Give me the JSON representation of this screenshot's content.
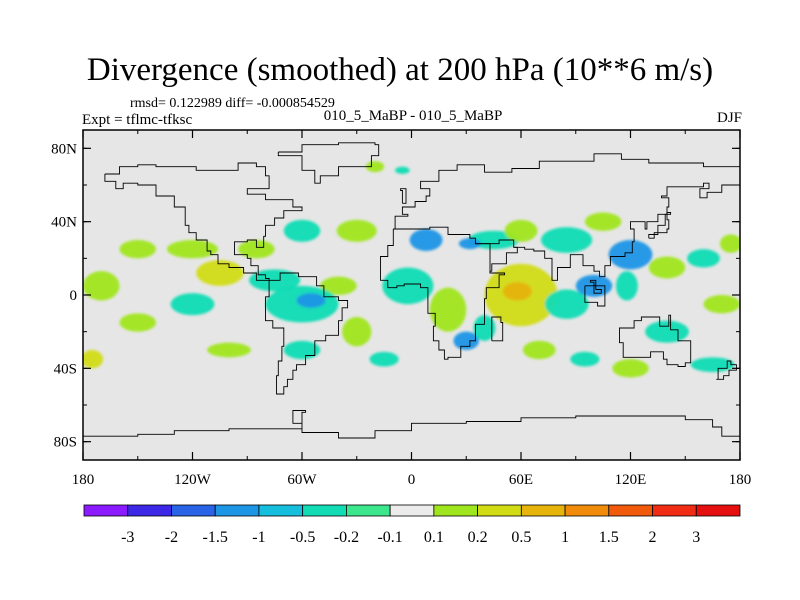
{
  "header": {
    "title": "Divergence (smoothed) at 200 hPa (10**6 m/s)",
    "stats": "rmsd= 0.122989 diff= -0.000854529",
    "experiment": "Expt = tflmc-tfksc",
    "subtitle": "010_5_MaBP - 010_5_MaBP",
    "season": "DJF"
  },
  "chart_data": {
    "type": "heatmap",
    "title": "Divergence (smoothed) at 200 hPa (10**6 m/s)",
    "projection": "cylindrical equidistant",
    "xlim": [
      -180,
      180
    ],
    "ylim": [
      -90,
      90
    ],
    "x_ticks": [
      {
        "value": -180,
        "label": "180"
      },
      {
        "value": -120,
        "label": "120W"
      },
      {
        "value": -60,
        "label": "60W"
      },
      {
        "value": 0,
        "label": "0"
      },
      {
        "value": 60,
        "label": "60E"
      },
      {
        "value": 120,
        "label": "120E"
      },
      {
        "value": 180,
        "label": "180"
      }
    ],
    "y_ticks": [
      {
        "value": 80,
        "label": "80N"
      },
      {
        "value": 40,
        "label": "40N"
      },
      {
        "value": 0,
        "label": "0"
      },
      {
        "value": -40,
        "label": "40S"
      },
      {
        "value": -80,
        "label": "80S"
      }
    ],
    "background_color": "#e6e6e6",
    "levels": [
      "-3",
      "-2",
      "-1.5",
      "-1",
      "-0.5",
      "-0.2",
      "-0.1",
      "0.1",
      "0.2",
      "0.5",
      "1",
      "1.5",
      "2",
      "3"
    ],
    "colors": [
      "#8c1aff",
      "#3c28e6",
      "#2a64e6",
      "#1e96e6",
      "#14bedc",
      "#12dcb4",
      "#3ce68c",
      "#ececec",
      "#a0e61e",
      "#d2dc14",
      "#e6b40a",
      "#f08c0a",
      "#f05a0a",
      "#f02d14",
      "#e60f0f"
    ],
    "regions": [
      {
        "lon": 8,
        "lat": 30,
        "rlon": 9,
        "rlat": 6,
        "color": "#1e96e6"
      },
      {
        "lon": 45,
        "lat": 30,
        "rlon": 14,
        "rlat": 5,
        "color": "#12dcb4"
      },
      {
        "lon": 32,
        "lat": 28,
        "rlon": 6,
        "rlat": 3,
        "color": "#1e96e6"
      },
      {
        "lon": 60,
        "lat": 35,
        "rlon": 9,
        "rlat": 6,
        "color": "#a0e61e"
      },
      {
        "lon": 85,
        "lat": 30,
        "rlon": 14,
        "rlat": 7,
        "color": "#12dcb4"
      },
      {
        "lon": 105,
        "lat": 40,
        "rlon": 10,
        "rlat": 5,
        "color": "#a0e61e"
      },
      {
        "lon": 120,
        "lat": 22,
        "rlon": 12,
        "rlat": 8,
        "color": "#1e96e6"
      },
      {
        "lon": 140,
        "lat": 15,
        "rlon": 10,
        "rlat": 6,
        "color": "#a0e61e"
      },
      {
        "lon": 160,
        "lat": 20,
        "rlon": 9,
        "rlat": 5,
        "color": "#12dcb4"
      },
      {
        "lon": 175,
        "lat": 28,
        "rlon": 6,
        "rlat": 5,
        "color": "#a0e61e"
      },
      {
        "lon": -2,
        "lat": 5,
        "rlon": 14,
        "rlat": 10,
        "color": "#12dcb4"
      },
      {
        "lon": 60,
        "lat": 0,
        "rlon": 20,
        "rlat": 17,
        "color": "#d2dc14"
      },
      {
        "lon": 58,
        "lat": 2,
        "rlon": 8,
        "rlat": 5,
        "color": "#e6b40a"
      },
      {
        "lon": 20,
        "lat": -8,
        "rlon": 10,
        "rlat": 12,
        "color": "#a0e61e"
      },
      {
        "lon": 30,
        "lat": -25,
        "rlon": 7,
        "rlat": 5,
        "color": "#1e96e6"
      },
      {
        "lon": 40,
        "lat": -18,
        "rlon": 6,
        "rlat": 7,
        "color": "#12dcb4"
      },
      {
        "lon": 85,
        "lat": -5,
        "rlon": 12,
        "rlat": 8,
        "color": "#12dcb4"
      },
      {
        "lon": 100,
        "lat": 5,
        "rlon": 10,
        "rlat": 6,
        "color": "#1e96e6"
      },
      {
        "lon": 118,
        "lat": 5,
        "rlon": 6,
        "rlat": 8,
        "color": "#12dcb4"
      },
      {
        "lon": 140,
        "lat": -20,
        "rlon": 12,
        "rlat": 6,
        "color": "#12dcb4"
      },
      {
        "lon": 170,
        "lat": -5,
        "rlon": 10,
        "rlat": 5,
        "color": "#a0e61e"
      },
      {
        "lon": 120,
        "lat": -40,
        "rlon": 10,
        "rlat": 5,
        "color": "#a0e61e"
      },
      {
        "lon": 165,
        "lat": -38,
        "rlon": 12,
        "rlat": 4,
        "color": "#12dcb4"
      },
      {
        "lon": 95,
        "lat": -35,
        "rlon": 8,
        "rlat": 4,
        "color": "#12dcb4"
      },
      {
        "lon": 70,
        "lat": -30,
        "rlon": 9,
        "rlat": 5,
        "color": "#a0e61e"
      },
      {
        "lon": -30,
        "lat": 35,
        "rlon": 11,
        "rlat": 6,
        "color": "#a0e61e"
      },
      {
        "lon": -60,
        "lat": 35,
        "rlon": 10,
        "rlat": 6,
        "color": "#12dcb4"
      },
      {
        "lon": -85,
        "lat": 25,
        "rlon": 10,
        "rlat": 5,
        "color": "#a0e61e"
      },
      {
        "lon": -120,
        "lat": 25,
        "rlon": 14,
        "rlat": 5,
        "color": "#a0e61e"
      },
      {
        "lon": -150,
        "lat": 25,
        "rlon": 10,
        "rlat": 5,
        "color": "#a0e61e"
      },
      {
        "lon": -170,
        "lat": 5,
        "rlon": 10,
        "rlat": 8,
        "color": "#a0e61e"
      },
      {
        "lon": -105,
        "lat": 12,
        "rlon": 13,
        "rlat": 7,
        "color": "#d2dc14"
      },
      {
        "lon": -75,
        "lat": 8,
        "rlon": 14,
        "rlat": 6,
        "color": "#12dcb4"
      },
      {
        "lon": -40,
        "lat": 5,
        "rlon": 10,
        "rlat": 5,
        "color": "#a0e61e"
      },
      {
        "lon": -60,
        "lat": -5,
        "rlon": 20,
        "rlat": 10,
        "color": "#12dcb4"
      },
      {
        "lon": -55,
        "lat": -3,
        "rlon": 8,
        "rlat": 4,
        "color": "#1e96e6"
      },
      {
        "lon": -120,
        "lat": -5,
        "rlon": 12,
        "rlat": 6,
        "color": "#12dcb4"
      },
      {
        "lon": -150,
        "lat": -15,
        "rlon": 10,
        "rlat": 5,
        "color": "#a0e61e"
      },
      {
        "lon": -30,
        "lat": -20,
        "rlon": 8,
        "rlat": 8,
        "color": "#a0e61e"
      },
      {
        "lon": -100,
        "lat": -30,
        "rlon": 12,
        "rlat": 4,
        "color": "#a0e61e"
      },
      {
        "lon": -60,
        "lat": -30,
        "rlon": 10,
        "rlat": 5,
        "color": "#12dcb4"
      },
      {
        "lon": -15,
        "lat": -35,
        "rlon": 8,
        "rlat": 4,
        "color": "#12dcb4"
      },
      {
        "lon": -175,
        "lat": -35,
        "rlon": 6,
        "rlat": 5,
        "color": "#d2dc14"
      },
      {
        "lon": -20,
        "lat": 70,
        "rlon": 5,
        "rlat": 3,
        "color": "#a0e61e"
      },
      {
        "lon": -5,
        "lat": 68,
        "rlon": 4,
        "rlat": 2,
        "color": "#12dcb4"
      }
    ],
    "coastlines": [
      [
        [
          -168,
          66
        ],
        [
          -160,
          70
        ],
        [
          -150,
          71
        ],
        [
          -140,
          70
        ],
        [
          -128,
          70
        ],
        [
          -118,
          68
        ],
        [
          -105,
          68
        ],
        [
          -95,
          72
        ],
        [
          -85,
          70
        ],
        [
          -80,
          65
        ],
        [
          -78,
          58
        ],
        [
          -90,
          55
        ],
        [
          -80,
          52
        ],
        [
          -65,
          48
        ],
        [
          -60,
          46
        ],
        [
          -70,
          42
        ],
        [
          -75,
          38
        ],
        [
          -80,
          32
        ],
        [
          -81,
          26
        ],
        [
          -85,
          30
        ],
        [
          -90,
          29
        ],
        [
          -97,
          27
        ],
        [
          -97,
          22
        ],
        [
          -90,
          20
        ],
        [
          -88,
          16
        ],
        [
          -84,
          11
        ],
        [
          -80,
          9
        ],
        [
          -78,
          8
        ],
        [
          -85,
          12
        ],
        [
          -92,
          15
        ],
        [
          -100,
          17
        ],
        [
          -106,
          22
        ],
        [
          -110,
          24
        ],
        [
          -112,
          30
        ],
        [
          -118,
          34
        ],
        [
          -122,
          38
        ],
        [
          -124,
          42
        ],
        [
          -124,
          48
        ],
        [
          -130,
          54
        ],
        [
          -140,
          60
        ],
        [
          -150,
          61
        ],
        [
          -158,
          58
        ],
        [
          -162,
          62
        ],
        [
          -168,
          66
        ]
      ],
      [
        [
          -78,
          8
        ],
        [
          -72,
          12
        ],
        [
          -62,
          10
        ],
        [
          -52,
          5
        ],
        [
          -48,
          -1
        ],
        [
          -40,
          -3
        ],
        [
          -35,
          -7
        ],
        [
          -38,
          -14
        ],
        [
          -40,
          -22
        ],
        [
          -47,
          -25
        ],
        [
          -53,
          -33
        ],
        [
          -58,
          -38
        ],
        [
          -63,
          -41
        ],
        [
          -65,
          -46
        ],
        [
          -68,
          -50
        ],
        [
          -70,
          -54
        ],
        [
          -74,
          -52
        ],
        [
          -74,
          -44
        ],
        [
          -73,
          -36
        ],
        [
          -71,
          -28
        ],
        [
          -70,
          -18
        ],
        [
          -76,
          -14
        ],
        [
          -80,
          -6
        ],
        [
          -80,
          -1
        ],
        [
          -78,
          8
        ]
      ],
      [
        [
          -10,
          36
        ],
        [
          -5,
          36
        ],
        [
          10,
          37
        ],
        [
          20,
          33
        ],
        [
          32,
          31
        ],
        [
          35,
          28
        ],
        [
          43,
          12
        ],
        [
          51,
          11
        ],
        [
          48,
          4
        ],
        [
          41,
          -2
        ],
        [
          40,
          -10
        ],
        [
          40,
          -16
        ],
        [
          35,
          -22
        ],
        [
          35,
          -25
        ],
        [
          32,
          -28
        ],
        [
          27,
          -34
        ],
        [
          20,
          -35
        ],
        [
          18,
          -30
        ],
        [
          15,
          -25
        ],
        [
          12,
          -17
        ],
        [
          13,
          -10
        ],
        [
          9,
          -2
        ],
        [
          9,
          4
        ],
        [
          5,
          6
        ],
        [
          -4,
          5
        ],
        [
          -8,
          4
        ],
        [
          -13,
          8
        ],
        [
          -17,
          14
        ],
        [
          -17,
          21
        ],
        [
          -13,
          27
        ],
        [
          -10,
          36
        ]
      ],
      [
        [
          -10,
          36
        ],
        [
          -9,
          43
        ],
        [
          -2,
          44
        ],
        [
          -5,
          48
        ],
        [
          2,
          51
        ],
        [
          8,
          54
        ],
        [
          10,
          58
        ],
        [
          5,
          62
        ],
        [
          15,
          68
        ],
        [
          25,
          71
        ],
        [
          40,
          67
        ],
        [
          55,
          69
        ],
        [
          70,
          73
        ],
        [
          80,
          73
        ],
        [
          100,
          77
        ],
        [
          115,
          74
        ],
        [
          130,
          72
        ],
        [
          140,
          72
        ],
        [
          160,
          70
        ],
        [
          170,
          70
        ],
        [
          180,
          68
        ]
      ],
      [
        [
          35,
          28
        ],
        [
          43,
          28
        ],
        [
          48,
          30
        ],
        [
          56,
          26
        ],
        [
          58,
          23
        ],
        [
          52,
          17
        ],
        [
          44,
          13
        ],
        [
          43,
          12
        ]
      ],
      [
        [
          56,
          26
        ],
        [
          62,
          25
        ],
        [
          67,
          24
        ],
        [
          73,
          20
        ],
        [
          77,
          8
        ],
        [
          80,
          10
        ],
        [
          80,
          15
        ],
        [
          87,
          22
        ],
        [
          92,
          22
        ],
        [
          94,
          16
        ],
        [
          98,
          16
        ],
        [
          100,
          13
        ],
        [
          103,
          10
        ],
        [
          106,
          11
        ],
        [
          106,
          16
        ],
        [
          109,
          21
        ],
        [
          117,
          23
        ],
        [
          121,
          29
        ],
        [
          122,
          36
        ],
        [
          120,
          40
        ],
        [
          124,
          40
        ],
        [
          128,
          36
        ],
        [
          129,
          40
        ],
        [
          135,
          44
        ],
        [
          140,
          48
        ],
        [
          141,
          53
        ],
        [
          137,
          54
        ],
        [
          140,
          59
        ],
        [
          150,
          59
        ],
        [
          160,
          61
        ],
        [
          163,
          58
        ],
        [
          158,
          53
        ],
        [
          162,
          56
        ],
        [
          170,
          60
        ],
        [
          180,
          64
        ]
      ],
      [
        [
          101,
          3
        ],
        [
          104,
          1
        ],
        [
          100,
          7
        ],
        [
          98,
          8
        ],
        [
          101,
          3
        ]
      ],
      [
        [
          95,
          5
        ],
        [
          106,
          -6
        ],
        [
          102,
          -4
        ],
        [
          95,
          5
        ]
      ],
      [
        [
          130,
          31
        ],
        [
          133,
          34
        ],
        [
          140,
          36
        ],
        [
          141,
          41
        ],
        [
          140,
          45
        ],
        [
          142,
          44
        ],
        [
          139,
          38
        ],
        [
          135,
          33
        ],
        [
          130,
          31
        ]
      ],
      [
        [
          114,
          -22
        ],
        [
          114,
          -26
        ],
        [
          116,
          -34
        ],
        [
          121,
          -34
        ],
        [
          131,
          -31
        ],
        [
          138,
          -35
        ],
        [
          140,
          -38
        ],
        [
          146,
          -39
        ],
        [
          150,
          -37
        ],
        [
          153,
          -28
        ],
        [
          153,
          -25
        ],
        [
          146,
          -19
        ],
        [
          142,
          -11
        ],
        [
          141,
          -17
        ],
        [
          136,
          -12
        ],
        [
          130,
          -12
        ],
        [
          126,
          -14
        ],
        [
          122,
          -18
        ],
        [
          114,
          -22
        ]
      ],
      [
        [
          167,
          -46
        ],
        [
          171,
          -44
        ],
        [
          174,
          -41
        ],
        [
          178,
          -38
        ],
        [
          175,
          -36
        ],
        [
          173,
          -40
        ],
        [
          168,
          -46
        ],
        [
          167,
          -46
        ]
      ],
      [
        [
          44,
          -25
        ],
        [
          47,
          -25
        ],
        [
          50,
          -15
        ],
        [
          49,
          -12
        ],
        [
          44,
          -16
        ],
        [
          44,
          -25
        ]
      ],
      [
        [
          -73,
          78
        ],
        [
          -60,
          82
        ],
        [
          -40,
          83
        ],
        [
          -20,
          82
        ],
        [
          -18,
          76
        ],
        [
          -22,
          70
        ],
        [
          -40,
          65
        ],
        [
          -50,
          61
        ],
        [
          -53,
          68
        ],
        [
          -60,
          76
        ],
        [
          -73,
          78
        ]
      ],
      [
        [
          -5,
          50
        ],
        [
          -3,
          58
        ],
        [
          -6,
          57
        ],
        [
          -5,
          50
        ]
      ],
      [
        [
          -180,
          -77
        ],
        [
          -150,
          -76
        ],
        [
          -130,
          -74
        ],
        [
          -100,
          -73
        ],
        [
          -75,
          -73
        ],
        [
          -60,
          -64
        ],
        [
          -58,
          -63
        ],
        [
          -65,
          -70
        ],
        [
          -60,
          -75
        ],
        [
          -40,
          -78
        ],
        [
          -20,
          -74
        ],
        [
          0,
          -70
        ],
        [
          30,
          -69
        ],
        [
          60,
          -67
        ],
        [
          90,
          -66
        ],
        [
          120,
          -66
        ],
        [
          150,
          -68
        ],
        [
          165,
          -72
        ],
        [
          170,
          -77
        ],
        [
          180,
          -78
        ]
      ],
      [
        [
          -180,
          -90
        ],
        [
          180,
          -90
        ]
      ]
    ]
  }
}
